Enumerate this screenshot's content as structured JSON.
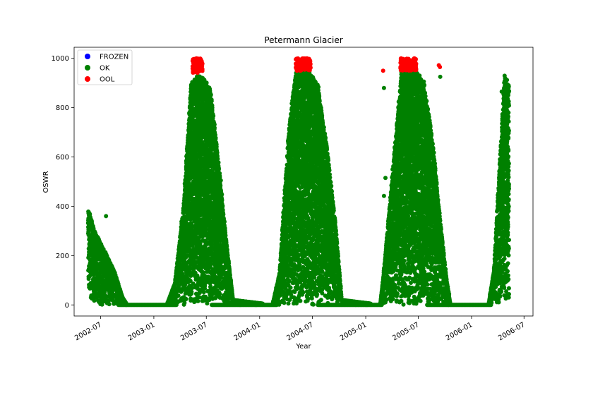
{
  "chart_data": {
    "type": "scatter",
    "title": "Petermann Glacier",
    "xlabel": "Year",
    "ylabel": "OSWR",
    "xlim": [
      "2002-04-01",
      "2006-08-01"
    ],
    "ylim": [
      -45,
      1045
    ],
    "x_ticks": [
      "2002-07",
      "2003-01",
      "2003-07",
      "2004-01",
      "2004-07",
      "2005-01",
      "2005-07",
      "2006-01",
      "2006-07"
    ],
    "y_ticks": [
      0,
      200,
      400,
      600,
      800,
      1000
    ],
    "legend": {
      "position": "upper-left"
    },
    "colors": {
      "FROZEN": "#0000ff",
      "OK": "#008000",
      "OOL": "#ff0000"
    },
    "series": [
      {
        "name": "FROZEN",
        "color": "#0000ff",
        "points": []
      },
      {
        "name": "OK",
        "color": "#008000",
        "envelope": [
          {
            "date": "2002-05-20",
            "ymax": 390
          },
          {
            "date": "2002-06-10",
            "ymax": 300
          },
          {
            "date": "2002-07-15",
            "ymax": 220
          },
          {
            "date": "2002-08-20",
            "ymax": 130
          },
          {
            "date": "2002-09-15",
            "ymax": 30
          },
          {
            "date": "2002-10-01",
            "ymax": 0
          },
          {
            "date": "2003-02-15",
            "ymax": 0
          },
          {
            "date": "2003-03-15",
            "ymax": 90
          },
          {
            "date": "2003-04-15",
            "ymax": 420
          },
          {
            "date": "2003-05-10",
            "ymax": 900
          },
          {
            "date": "2003-06-01",
            "ymax": 930
          },
          {
            "date": "2003-06-20",
            "ymax": 920
          },
          {
            "date": "2003-07-15",
            "ymax": 880
          },
          {
            "date": "2003-08-10",
            "ymax": 600
          },
          {
            "date": "2003-09-05",
            "ymax": 290
          },
          {
            "date": "2003-10-01",
            "ymax": 20
          },
          {
            "date": "2004-02-15",
            "ymax": 0
          },
          {
            "date": "2004-03-10",
            "ymax": 130
          },
          {
            "date": "2004-04-10",
            "ymax": 700
          },
          {
            "date": "2004-05-05",
            "ymax": 950
          },
          {
            "date": "2004-06-20",
            "ymax": 950
          },
          {
            "date": "2004-07-20",
            "ymax": 890
          },
          {
            "date": "2004-08-20",
            "ymax": 640
          },
          {
            "date": "2004-09-20",
            "ymax": 310
          },
          {
            "date": "2004-10-10",
            "ymax": 20
          },
          {
            "date": "2005-02-20",
            "ymax": 0
          },
          {
            "date": "2005-03-05",
            "ymax": 140
          },
          {
            "date": "2005-04-10",
            "ymax": 630
          },
          {
            "date": "2005-05-05",
            "ymax": 950
          },
          {
            "date": "2005-06-20",
            "ymax": 950
          },
          {
            "date": "2005-07-20",
            "ymax": 910
          },
          {
            "date": "2005-08-20",
            "ymax": 660
          },
          {
            "date": "2005-09-10",
            "ymax": 400
          },
          {
            "date": "2005-10-05",
            "ymax": 120
          },
          {
            "date": "2005-10-20",
            "ymax": 0
          },
          {
            "date": "2006-03-01",
            "ymax": 0
          },
          {
            "date": "2006-03-20",
            "ymax": 150
          },
          {
            "date": "2006-04-05",
            "ymax": 500
          },
          {
            "date": "2006-04-25",
            "ymax": 930
          },
          {
            "date": "2006-05-10",
            "ymax": 900
          }
        ],
        "zero_baseline": [
          [
            "2002-09-01",
            "2003-03-20"
          ],
          [
            "2003-07-20",
            "2004-03-01"
          ],
          [
            "2004-07-20",
            "2005-02-25"
          ],
          [
            "2005-08-01",
            "2006-03-10"
          ]
        ],
        "outliers": [
          {
            "date": "2002-07-20",
            "y": 360
          },
          {
            "date": "2003-08-20",
            "y": 505
          },
          {
            "date": "2004-08-15",
            "y": 622
          },
          {
            "date": "2005-03-05",
            "y": 880
          },
          {
            "date": "2005-03-10",
            "y": 515
          },
          {
            "date": "2005-03-05",
            "y": 442
          },
          {
            "date": "2005-09-15",
            "y": 925
          },
          {
            "date": "2006-04-15",
            "y": 865
          }
        ]
      },
      {
        "name": "OOL",
        "color": "#ff0000",
        "clusters": [
          {
            "start": "2003-05-15",
            "end": "2003-06-18",
            "ymin": 940,
            "ymax": 1000
          },
          {
            "start": "2004-05-05",
            "end": "2004-06-25",
            "ymin": 950,
            "ymax": 1000
          },
          {
            "start": "2005-05-01",
            "end": "2005-06-25",
            "ymin": 950,
            "ymax": 1000
          }
        ],
        "points": [
          {
            "date": "2005-03-02",
            "y": 950
          },
          {
            "date": "2005-09-10",
            "y": 972
          },
          {
            "date": "2005-09-14",
            "y": 965
          }
        ]
      }
    ]
  }
}
